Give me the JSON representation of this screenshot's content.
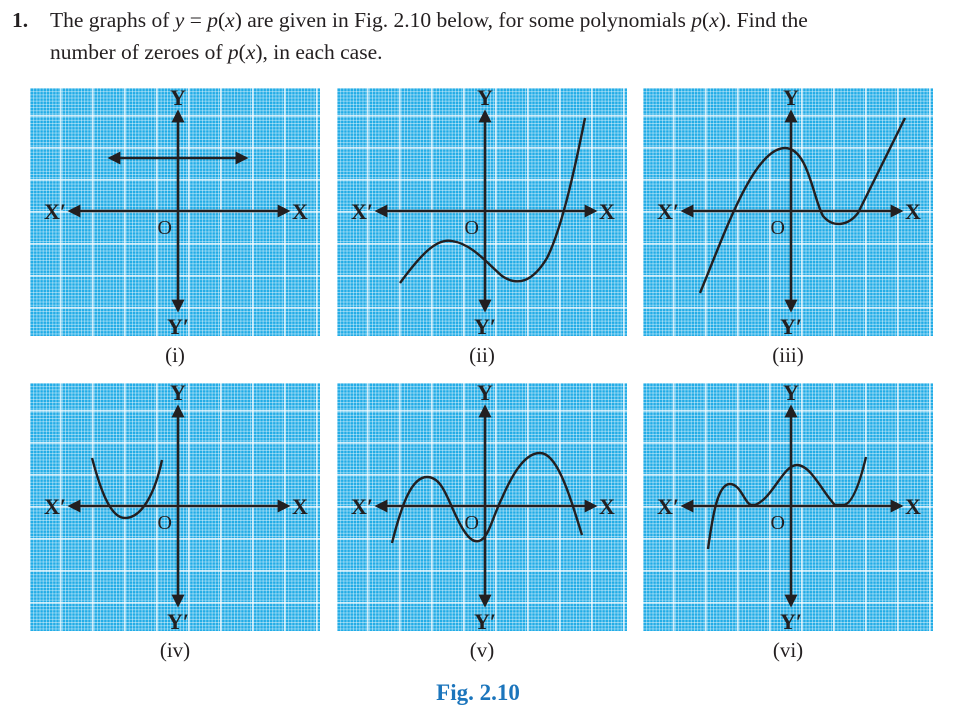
{
  "question": {
    "number": "1.",
    "line1": [
      {
        "t": "The graphs of ",
        "i": false
      },
      {
        "t": "y",
        "i": true
      },
      {
        "t": " = ",
        "i": false
      },
      {
        "t": "p",
        "i": true
      },
      {
        "t": "(",
        "i": false
      },
      {
        "t": "x",
        "i": true
      },
      {
        "t": ") are given in Fig. 2.10 below, for some polynomials ",
        "i": false
      },
      {
        "t": "p",
        "i": true
      },
      {
        "t": "(",
        "i": false
      },
      {
        "t": "x",
        "i": true
      },
      {
        "t": "). Find the",
        "i": false
      }
    ],
    "line2": [
      {
        "t": "number of zeroes of ",
        "i": false
      },
      {
        "t": "p",
        "i": true
      },
      {
        "t": "(",
        "i": false
      },
      {
        "t": "x",
        "i": true
      },
      {
        "t": "), in each case.",
        "i": false
      }
    ]
  },
  "axis_labels": {
    "y": "Y",
    "y_prime": "Y′",
    "x": "X",
    "x_prime": "X′",
    "origin": "O"
  },
  "graphs": [
    {
      "id": "i",
      "caption": "(i)",
      "zeroes": 0
    },
    {
      "id": "ii",
      "caption": "(ii)",
      "zeroes": 1
    },
    {
      "id": "iii",
      "caption": "(iii)",
      "zeroes": 3
    },
    {
      "id": "iv",
      "caption": "(iv)",
      "zeroes": 2
    },
    {
      "id": "v",
      "caption": "(v)",
      "zeroes": 4
    },
    {
      "id": "vi",
      "caption": "(vi)",
      "zeroes": 3
    }
  ],
  "figure_caption": "Fig. 2.10",
  "colors": {
    "grid_bg": "#22ace6",
    "caption_blue": "#1b75bc",
    "ink": "#231f20"
  }
}
